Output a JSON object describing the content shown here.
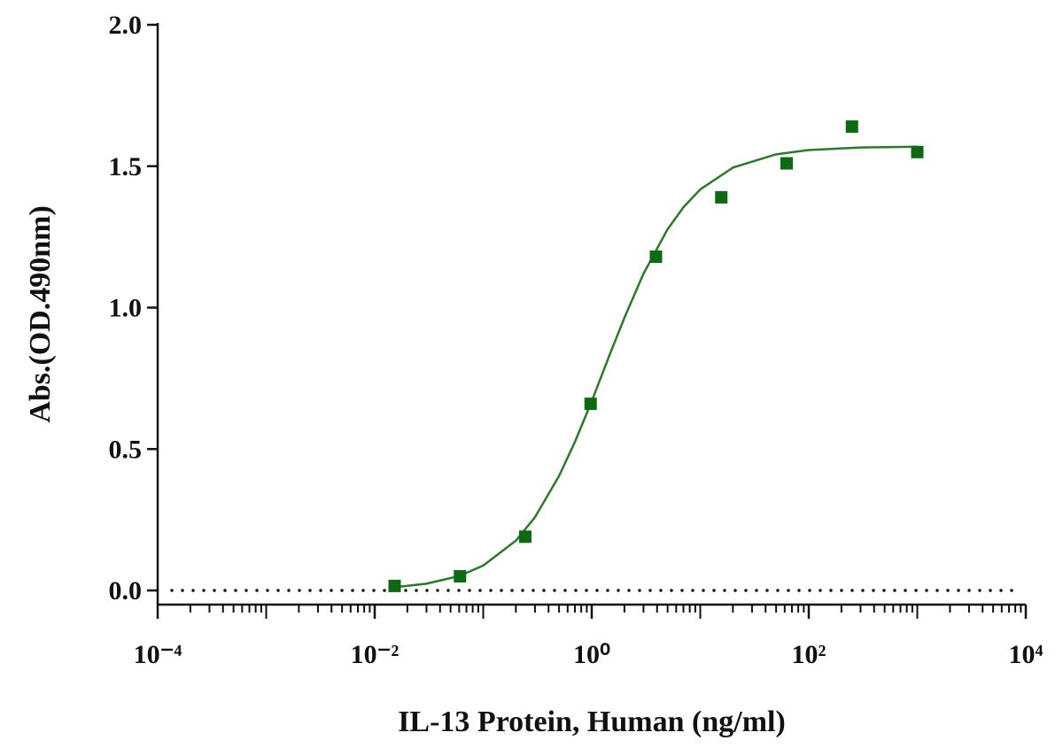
{
  "chart_data": {
    "type": "scatter",
    "xlabel": "IL-13 Protein, Human  (ng/ml)",
    "ylabel": "Abs.(OD.490nm)",
    "xscale": "log",
    "xlim": [
      0.0001,
      10000
    ],
    "xticks": [
      {
        "value": 0.0001,
        "label": "10⁻⁴"
      },
      {
        "value": 0.01,
        "label": "10⁻²"
      },
      {
        "value": 1,
        "label": "10⁰"
      },
      {
        "value": 100,
        "label": "10²"
      },
      {
        "value": 10000,
        "label": "10⁴"
      }
    ],
    "minor_ticks": true,
    "ylim": [
      -0.05,
      2.0
    ],
    "yticks": [
      {
        "value": 0,
        "label": "0.0"
      },
      0.5,
      {
        "value": 1,
        "label": "1.0"
      },
      1.5,
      {
        "value": 2,
        "label": "2.0"
      }
    ],
    "hline": 0,
    "series": [
      {
        "type": "scatter",
        "color": "#0e6a12",
        "x": [
          0.0152587890625,
          0.06103515625,
          0.244140625,
          0.9765625,
          3.90625,
          15.625,
          62.5,
          250,
          1000
        ],
        "values": [
          0.016,
          0.05,
          0.19,
          0.66,
          1.18,
          1.39,
          1.51,
          1.64,
          1.55
        ]
      },
      {
        "type": "line",
        "color": "#2a7a2a",
        "x": [
          0.015,
          0.03,
          0.06,
          0.1,
          0.2,
          0.3,
          0.5,
          0.7,
          1,
          1.5,
          2,
          3,
          5,
          7,
          10,
          20,
          50,
          100,
          300,
          1000
        ],
        "values": [
          0.011,
          0.024,
          0.051,
          0.088,
          0.176,
          0.259,
          0.405,
          0.525,
          0.669,
          0.844,
          0.964,
          1.12,
          1.277,
          1.355,
          1.418,
          1.495,
          1.542,
          1.557,
          1.566,
          1.569
        ]
      }
    ]
  }
}
